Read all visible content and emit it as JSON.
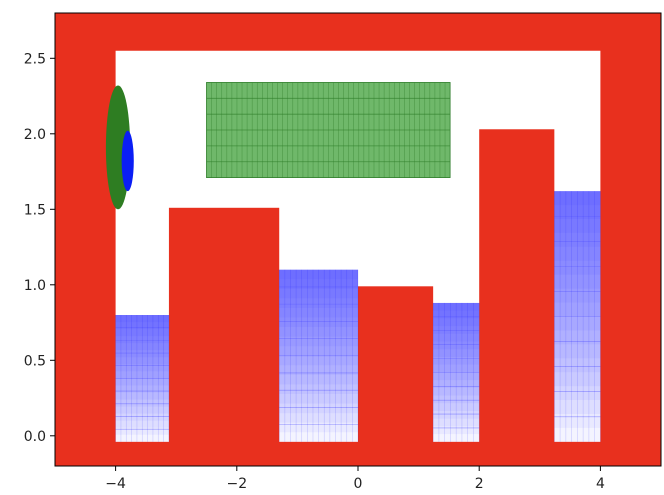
{
  "chart_data": {
    "type": "heatmap",
    "title": "",
    "xlabel": "",
    "ylabel": "",
    "xlim": [
      -5,
      5
    ],
    "ylim": [
      -0.2,
      2.8
    ],
    "x_ticks": [
      -4,
      -2,
      0,
      2,
      4
    ],
    "x_tick_labels": [
      "−4",
      "−2",
      "0",
      "2",
      "4"
    ],
    "y_ticks": [
      0.0,
      0.5,
      1.0,
      1.5,
      2.0,
      2.5
    ],
    "y_tick_labels": [
      "0.0",
      "0.5",
      "1.0",
      "1.5",
      "2.0",
      "2.5"
    ],
    "grid": false,
    "colors": {
      "wall": "#e8301e",
      "goal_fill": "#6fb86a",
      "goal_line": "#2f7d2a",
      "agent_outer": "#2e7d22",
      "agent_inner": "#0a1ef5",
      "pit_dark": "#0000ff",
      "pit_faint": "#dcdcff",
      "axes": "#000000"
    },
    "walls": [
      {
        "name": "outer-left",
        "x0": -5.0,
        "x1": -4.0,
        "y0": -0.2,
        "y1": 2.8
      },
      {
        "name": "outer-right",
        "x0": 4.0,
        "x1": 5.0,
        "y0": -0.2,
        "y1": 2.8
      },
      {
        "name": "outer-top",
        "x0": -5.0,
        "x1": 5.0,
        "y0": 2.55,
        "y1": 2.8
      },
      {
        "name": "outer-bottom",
        "x0": -5.0,
        "x1": 5.0,
        "y0": -0.2,
        "y1": -0.04
      },
      {
        "name": "pillar-1",
        "x0": -3.12,
        "x1": -1.3,
        "y0": -0.2,
        "y1": 1.51
      },
      {
        "name": "pillar-2",
        "x0": 0.0,
        "x1": 1.24,
        "y0": -0.2,
        "y1": 0.99
      },
      {
        "name": "pillar-3",
        "x0": 2.0,
        "x1": 3.24,
        "y0": -0.2,
        "y1": 2.03
      }
    ],
    "goal": {
      "x0": -2.5,
      "x1": 1.52,
      "y0": 1.71,
      "y1": 2.34,
      "cols": 48,
      "rows": 6
    },
    "agent": {
      "outer": {
        "cx": -3.96,
        "cy": 1.91,
        "rx": 0.2,
        "ry": 0.41
      },
      "inner": {
        "cx": -3.8,
        "cy": 1.82,
        "rx": 0.1,
        "ry": 0.2
      }
    },
    "pits": [
      {
        "name": "pit-1",
        "x0": -4.0,
        "x1": -3.12,
        "y0": -0.04,
        "y1": 0.8,
        "cols": 10
      },
      {
        "name": "pit-2",
        "x0": -1.3,
        "x1": 0.0,
        "y0": -0.04,
        "y1": 1.1,
        "cols": 14
      },
      {
        "name": "pit-3",
        "x0": 1.24,
        "x1": 2.0,
        "y0": -0.04,
        "y1": 0.88,
        "cols": 8
      },
      {
        "name": "pit-4",
        "x0": 3.24,
        "x1": 4.0,
        "y0": -0.04,
        "y1": 1.62,
        "cols": 8
      }
    ]
  }
}
